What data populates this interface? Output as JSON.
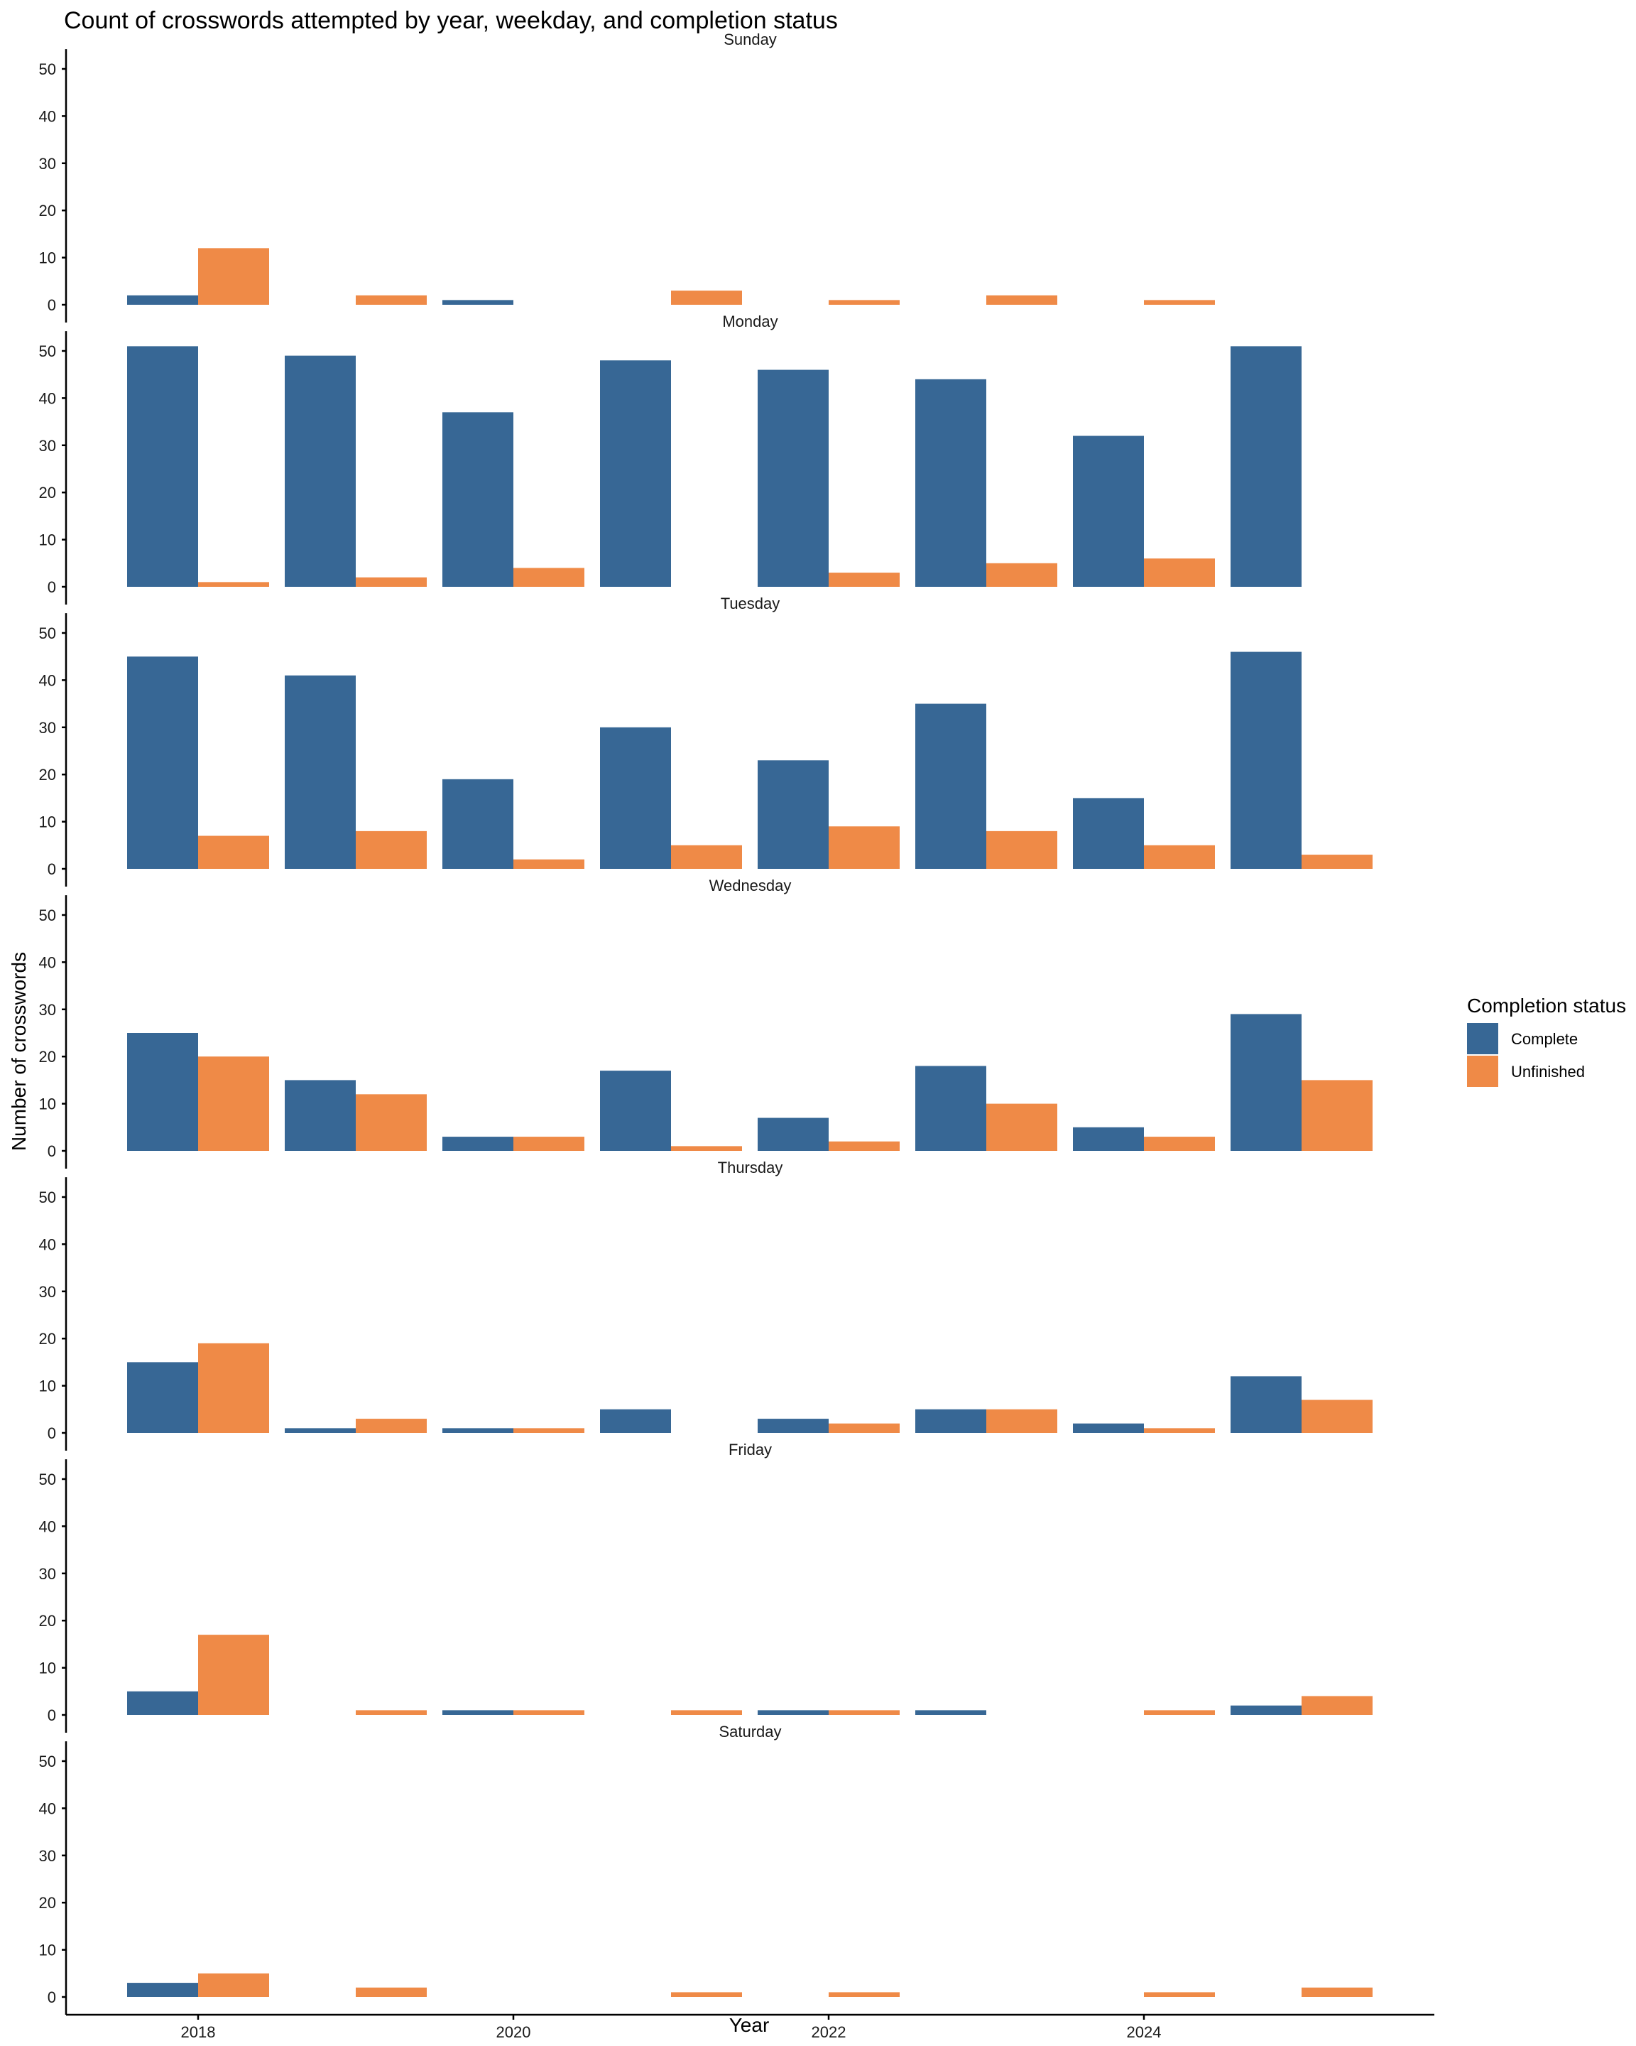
{
  "chart_data": {
    "type": "bar",
    "title": "Count of crosswords attempted by year, weekday, and completion status",
    "xlabel": "Year",
    "ylabel": "Number of crosswords",
    "x_tick_labels": [
      "2018",
      "2020",
      "2022",
      "2024"
    ],
    "x_ticks": [
      2018,
      2020,
      2022,
      2024
    ],
    "y_ticks": [
      0,
      10,
      20,
      30,
      40,
      50
    ],
    "ylim": [
      0,
      53
    ],
    "xlim": [
      2017.4,
      2025.6
    ],
    "years": [
      2018,
      2019,
      2020,
      2021,
      2022,
      2023,
      2024,
      2025
    ],
    "grid": false,
    "legend": {
      "title": "Completion status",
      "position": "right",
      "entries": [
        {
          "label": "Complete",
          "color": "#376795"
        },
        {
          "label": "Unfinished",
          "color": "#EF8A47"
        }
      ]
    },
    "facets": [
      {
        "name": "Sunday",
        "series": [
          {
            "name": "Complete",
            "values": [
              2,
              0,
              1,
              0,
              0,
              0,
              0,
              0
            ]
          },
          {
            "name": "Unfinished",
            "values": [
              12,
              2,
              0,
              3,
              1,
              2,
              1,
              0
            ]
          }
        ]
      },
      {
        "name": "Monday",
        "series": [
          {
            "name": "Complete",
            "values": [
              51,
              49,
              37,
              48,
              46,
              44,
              32,
              51
            ]
          },
          {
            "name": "Unfinished",
            "values": [
              1,
              2,
              4,
              0,
              3,
              5,
              6,
              0
            ]
          }
        ]
      },
      {
        "name": "Tuesday",
        "series": [
          {
            "name": "Complete",
            "values": [
              45,
              41,
              19,
              30,
              23,
              35,
              15,
              46
            ]
          },
          {
            "name": "Unfinished",
            "values": [
              7,
              8,
              2,
              5,
              9,
              8,
              5,
              3
            ]
          }
        ]
      },
      {
        "name": "Wednesday",
        "series": [
          {
            "name": "Complete",
            "values": [
              25,
              15,
              3,
              17,
              7,
              18,
              5,
              29
            ]
          },
          {
            "name": "Unfinished",
            "values": [
              20,
              12,
              3,
              1,
              2,
              10,
              3,
              15
            ]
          }
        ]
      },
      {
        "name": "Thursday",
        "series": [
          {
            "name": "Complete",
            "values": [
              15,
              1,
              1,
              5,
              3,
              5,
              2,
              12
            ]
          },
          {
            "name": "Unfinished",
            "values": [
              19,
              3,
              1,
              0,
              2,
              5,
              1,
              7
            ]
          }
        ]
      },
      {
        "name": "Friday",
        "series": [
          {
            "name": "Complete",
            "values": [
              5,
              0,
              1,
              0,
              1,
              1,
              0,
              2
            ]
          },
          {
            "name": "Unfinished",
            "values": [
              17,
              1,
              1,
              1,
              1,
              0,
              1,
              4
            ]
          }
        ]
      },
      {
        "name": "Saturday",
        "series": [
          {
            "name": "Complete",
            "values": [
              3,
              0,
              0,
              0,
              0,
              0,
              0,
              0
            ]
          },
          {
            "name": "Unfinished",
            "values": [
              5,
              2,
              0,
              1,
              1,
              0,
              1,
              2
            ]
          }
        ]
      }
    ]
  }
}
